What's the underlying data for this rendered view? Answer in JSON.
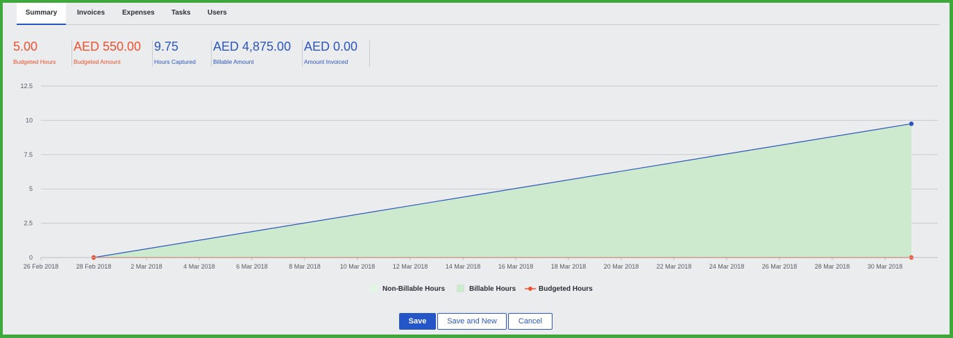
{
  "tabs": [
    {
      "label": "Summary",
      "active": true
    },
    {
      "label": "Invoices",
      "active": false
    },
    {
      "label": "Expenses",
      "active": false
    },
    {
      "label": "Tasks",
      "active": false
    },
    {
      "label": "Users",
      "active": false
    }
  ],
  "kpis": [
    {
      "value": "5.00",
      "label": "Budgeted Hours",
      "color": "#f0522f"
    },
    {
      "value": "AED 550.00",
      "label": "Budgeted Amount",
      "color": "#f0522f"
    },
    {
      "value": "9.75",
      "label": "Hours Captured",
      "color": "#2c56bd"
    },
    {
      "value": "AED 4,875.00",
      "label": "Billable Amount",
      "color": "#2c56bd"
    },
    {
      "value": "AED 0.00",
      "label": "Amount Invoiced",
      "color": "#2c56bd"
    }
  ],
  "chart_data": {
    "type": "area",
    "title": "",
    "xlabel": "",
    "ylabel": "",
    "y_ticks": [
      "0",
      "2.5",
      "5",
      "7.5",
      "10",
      "12.5"
    ],
    "ylim": [
      0,
      12.5
    ],
    "x_ticks": [
      "26 Feb 2018",
      "28 Feb 2018",
      "2 Mar 2018",
      "4 Mar 2018",
      "6 Mar 2018",
      "8 Mar 2018",
      "10 Mar 2018",
      "12 Mar 2018",
      "14 Mar 2018",
      "16 Mar 2018",
      "18 Mar 2018",
      "20 Mar 2018",
      "22 Mar 2018",
      "24 Mar 2018",
      "26 Mar 2018",
      "28 Mar 2018",
      "30 Mar 2018"
    ],
    "xlim": [
      "2018-02-26",
      "2018-04-01"
    ],
    "grid": true,
    "legend_position": "bottom",
    "series": [
      {
        "name": "Non-Billable Hours",
        "style": "area",
        "color": "#e2f4e2",
        "x": [
          "2018-02-28",
          "2018-03-31"
        ],
        "y": [
          0,
          0
        ]
      },
      {
        "name": "Billable Hours",
        "style": "area",
        "color": "#cdeace",
        "line_color": "#2c56bd",
        "x": [
          "2018-02-28",
          "2018-03-31"
        ],
        "y": [
          0,
          9.75
        ]
      },
      {
        "name": "Budgeted Hours",
        "style": "line",
        "color": "#f0522f",
        "x": [
          "2018-02-28",
          "2018-03-31"
        ],
        "y": [
          0,
          0
        ]
      }
    ]
  },
  "buttons": {
    "save": "Save",
    "save_new": "Save and New",
    "cancel": "Cancel"
  }
}
